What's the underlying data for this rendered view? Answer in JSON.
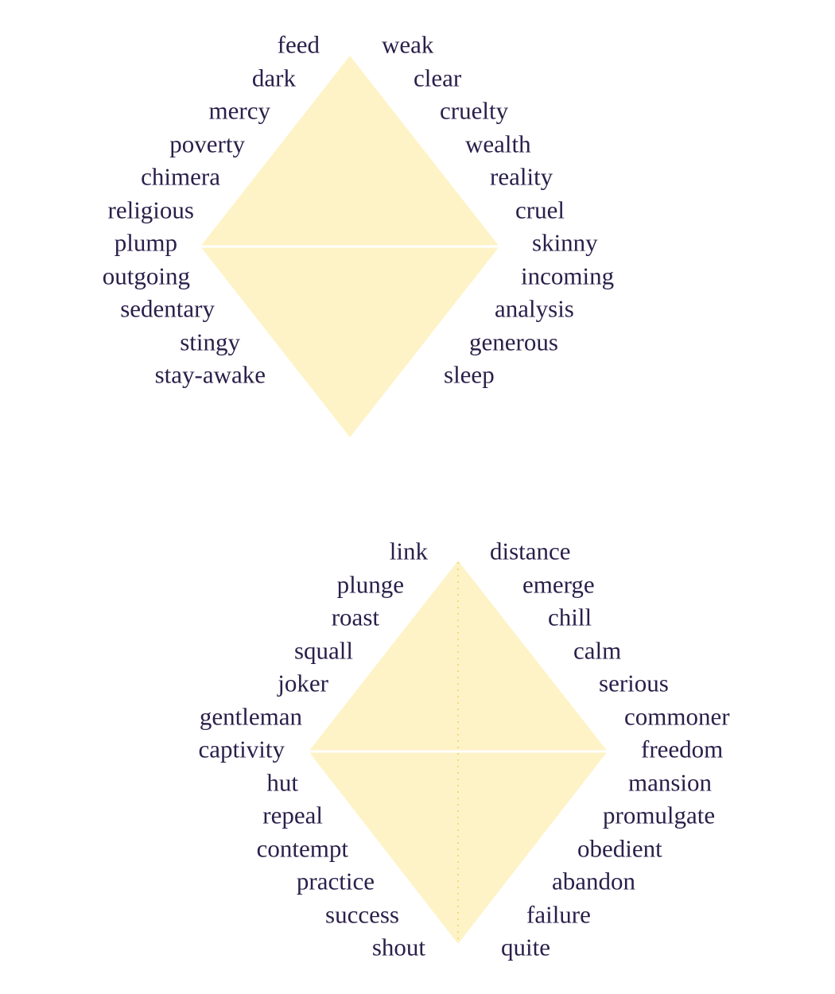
{
  "colors": {
    "fill": "#fef3c7",
    "divider": "#ffffff",
    "dotted_axis": "#f2da7a",
    "text": "#2a1f4a"
  },
  "diagrams": [
    {
      "left_words": [
        "feed",
        "dark",
        "mercy",
        "poverty",
        "chimera",
        "religious",
        "plump",
        "outgoing",
        "sedentary",
        "stingy",
        "stay-awake"
      ],
      "right_words": [
        "weak",
        "clear",
        "cruelty",
        "wealth",
        "reality",
        "cruel",
        "skinny",
        "incoming",
        "analysis",
        "generous",
        "sleep"
      ]
    },
    {
      "left_words": [
        "link",
        "plunge",
        "roast",
        "squall",
        "joker",
        "gentleman",
        "captivity",
        "hut",
        "repeal",
        "contempt",
        "practice",
        "success",
        "shout"
      ],
      "right_words": [
        "distance",
        "emerge",
        "chill",
        "calm",
        "serious",
        "commoner",
        "freedom",
        "mansion",
        "promulgate",
        "obedient",
        "abandon",
        "failure",
        "quite"
      ]
    }
  ]
}
